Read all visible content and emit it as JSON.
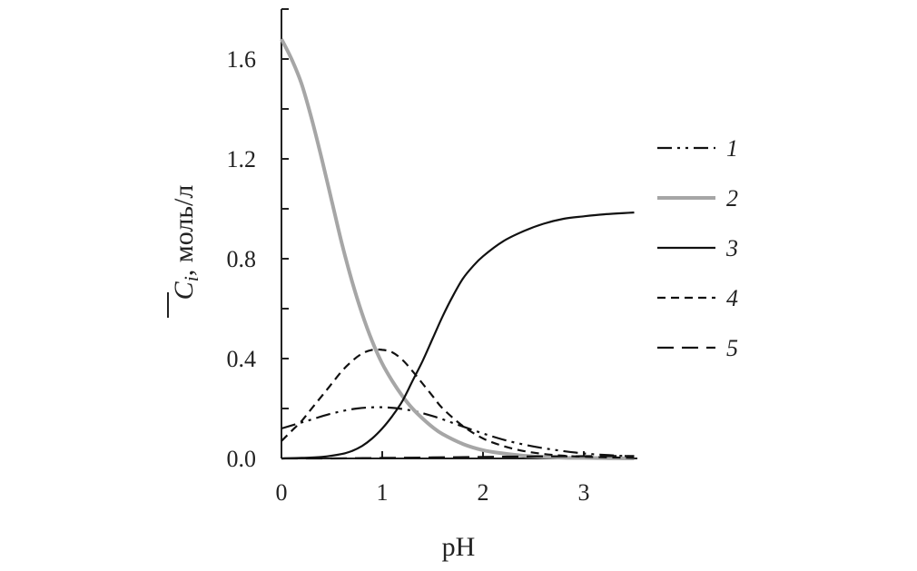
{
  "chart_data": {
    "type": "line",
    "xlabel": "pH",
    "ylabel_symbol": "C",
    "ylabel_subscript": "i",
    "ylabel_unit": ", моль/л",
    "xlim": [
      0,
      3.5
    ],
    "ylim": [
      0,
      1.75
    ],
    "x_ticks": [
      0,
      1,
      2,
      3
    ],
    "x_tick_labels": [
      "0",
      "1",
      "2",
      "3"
    ],
    "y_ticks": [
      0.0,
      0.4,
      0.8,
      1.2,
      1.6
    ],
    "y_tick_labels": [
      "0.0",
      "0.4",
      "0.8",
      "1.2",
      "1.6"
    ],
    "grid": false,
    "legend_position": "right",
    "series": [
      {
        "name": "1",
        "style": "dash-dot-dot",
        "color": "#111111",
        "x": [
          0,
          0.25,
          0.5,
          0.75,
          1.0,
          1.25,
          1.5,
          1.75,
          2.0,
          2.25,
          2.5,
          2.75,
          3.0,
          3.25,
          3.5
        ],
        "y": [
          0.12,
          0.15,
          0.18,
          0.2,
          0.205,
          0.195,
          0.17,
          0.135,
          0.1,
          0.07,
          0.048,
          0.032,
          0.02,
          0.013,
          0.008
        ]
      },
      {
        "name": "2",
        "style": "solid",
        "color": "#a6a6a6",
        "x": [
          0,
          0.1,
          0.2,
          0.3,
          0.4,
          0.5,
          0.6,
          0.7,
          0.8,
          0.9,
          1.0,
          1.1,
          1.2,
          1.3,
          1.4,
          1.5,
          1.6,
          1.8,
          2.0,
          2.2,
          2.4,
          2.6,
          2.8,
          3.0,
          3.5
        ],
        "y": [
          1.68,
          1.6,
          1.5,
          1.36,
          1.2,
          1.03,
          0.86,
          0.71,
          0.58,
          0.47,
          0.38,
          0.31,
          0.25,
          0.2,
          0.16,
          0.125,
          0.097,
          0.058,
          0.033,
          0.02,
          0.011,
          0.006,
          0.003,
          0.002,
          0.0
        ]
      },
      {
        "name": "3",
        "style": "solid",
        "color": "#111111",
        "x": [
          0,
          0.2,
          0.4,
          0.6,
          0.7,
          0.8,
          0.9,
          1.0,
          1.1,
          1.2,
          1.3,
          1.4,
          1.5,
          1.6,
          1.7,
          1.8,
          1.9,
          2.0,
          2.2,
          2.4,
          2.6,
          2.8,
          3.0,
          3.2,
          3.5
        ],
        "y": [
          0.0,
          0.002,
          0.006,
          0.018,
          0.03,
          0.05,
          0.08,
          0.12,
          0.17,
          0.23,
          0.31,
          0.39,
          0.48,
          0.57,
          0.65,
          0.72,
          0.77,
          0.81,
          0.87,
          0.91,
          0.94,
          0.96,
          0.97,
          0.978,
          0.985
        ]
      },
      {
        "name": "4",
        "style": "dash",
        "color": "#111111",
        "x": [
          0,
          0.1,
          0.2,
          0.3,
          0.4,
          0.5,
          0.6,
          0.7,
          0.8,
          0.9,
          1.0,
          1.1,
          1.2,
          1.3,
          1.4,
          1.5,
          1.6,
          1.8,
          2.0,
          2.2,
          2.4,
          2.6,
          2.8,
          3.0,
          3.5
        ],
        "y": [
          0.07,
          0.11,
          0.15,
          0.2,
          0.25,
          0.3,
          0.35,
          0.39,
          0.42,
          0.435,
          0.435,
          0.425,
          0.395,
          0.35,
          0.3,
          0.25,
          0.2,
          0.13,
          0.08,
          0.05,
          0.03,
          0.018,
          0.011,
          0.007,
          0.002
        ]
      },
      {
        "name": "5",
        "style": "long-dash",
        "color": "#111111",
        "x": [
          0,
          0.5,
          1.0,
          1.5,
          2.0,
          2.5,
          3.0,
          3.5
        ],
        "y": [
          0.0,
          0.0,
          0.002,
          0.004,
          0.006,
          0.008,
          0.009,
          0.01
        ]
      }
    ]
  }
}
